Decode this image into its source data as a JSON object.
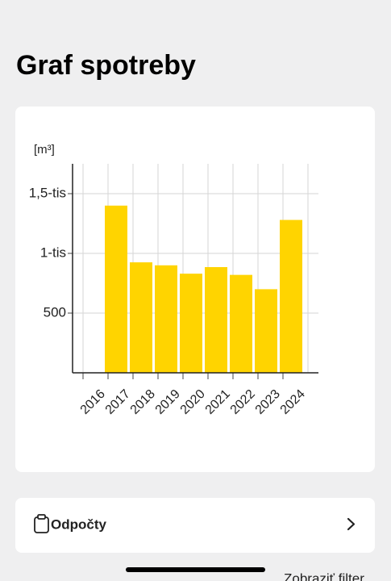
{
  "header": {
    "title": "Graf spotreby"
  },
  "chart_data": {
    "type": "bar",
    "unit_label": "[m³]",
    "categories": [
      "2016",
      "2017",
      "2018",
      "2019",
      "2020",
      "2021",
      "2022",
      "2023",
      "2024"
    ],
    "values": [
      null,
      1400,
      925,
      900,
      830,
      885,
      820,
      700,
      1280
    ],
    "color": "#ffd400",
    "ylim": [
      0,
      1750
    ],
    "yticks": [
      500,
      {
        "value": 1000,
        "label": "1-tis"
      },
      {
        "value": 1500,
        "label": "1,5-tis"
      }
    ],
    "grid": true
  },
  "list_item": {
    "label": "Odpočty"
  },
  "footer": {
    "link": "Zobraziť filter"
  }
}
